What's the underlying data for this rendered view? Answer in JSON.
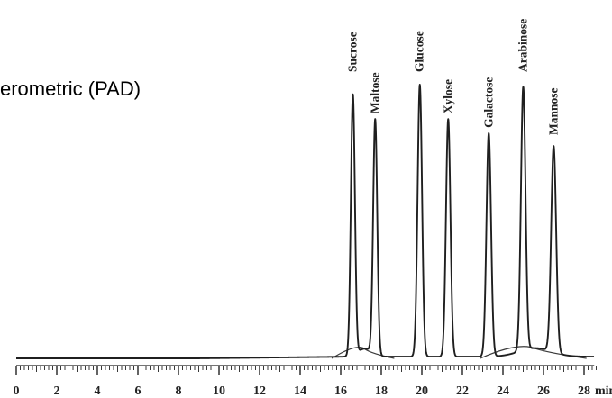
{
  "title": "erometric (PAD)",
  "chart_data": {
    "type": "line",
    "xlabel_unit": "min",
    "xlim": [
      0,
      28.5
    ],
    "x_ticks": [
      0,
      2,
      4,
      6,
      8,
      10,
      12,
      14,
      16,
      18,
      20,
      22,
      24,
      26,
      28
    ],
    "x_tick_labels": [
      "0",
      "2",
      "4",
      "6",
      "8",
      "10",
      "12",
      "14",
      "16",
      "18",
      "20",
      "22",
      "24",
      "26",
      "28"
    ],
    "y_axis_shown": false,
    "grid": false,
    "series": [
      {
        "peaks": [
          {
            "label": "Sucrose",
            "rt": 16.6,
            "height": 0.91,
            "width": 0.22
          },
          {
            "label": "Maltose",
            "rt": 17.7,
            "height": 0.82,
            "width": 0.22
          },
          {
            "label": "Glucose",
            "rt": 19.9,
            "height": 0.95,
            "width": 0.24
          },
          {
            "label": "Xylose",
            "rt": 21.3,
            "height": 0.83,
            "width": 0.24
          },
          {
            "label": "Galactose",
            "rt": 23.3,
            "height": 0.78,
            "width": 0.25
          },
          {
            "label": "Arabinose",
            "rt": 25.0,
            "height": 0.92,
            "width": 0.25
          },
          {
            "label": "Mannose",
            "rt": 26.5,
            "height": 0.72,
            "width": 0.27
          }
        ]
      }
    ],
    "baseline_humps": [
      {
        "center": 17.2,
        "height": 0.08,
        "width": 0.7
      },
      {
        "center": 25.6,
        "height": 0.085,
        "width": 1.6
      }
    ]
  }
}
